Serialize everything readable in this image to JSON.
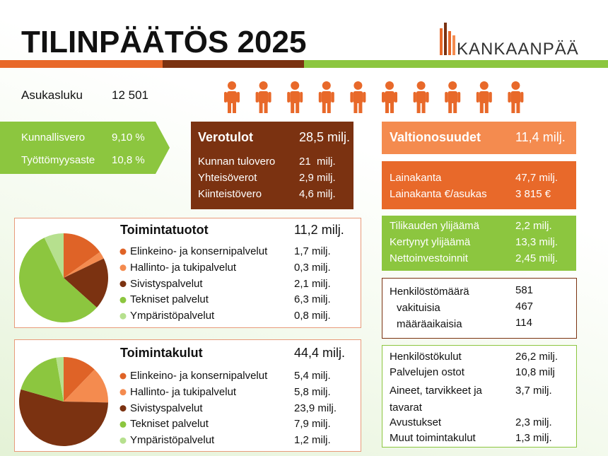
{
  "header": {
    "title": "TILINPÄÄTÖS 2025",
    "logo": "KANKAANPÄÄ"
  },
  "population": {
    "label": "Asukasluku",
    "value": "12 501"
  },
  "rates": [
    [
      "Kunnallisvero",
      "9,10 %"
    ],
    [
      "Työttömyysaste",
      "10,8 %"
    ]
  ],
  "tax_income": {
    "title": "Verotulot",
    "total": "28,5 milj.",
    "rows": [
      [
        "Kunnan tulovero",
        "21  milj."
      ],
      [
        "Yhteisöverot",
        "2,9 milj."
      ],
      [
        "Kiinteistövero",
        "4,6 milj."
      ]
    ]
  },
  "state_aid": {
    "label": "Valtionosuudet",
    "value": "11,4 milj."
  },
  "loans": [
    [
      "Lainakanta",
      "47,7 milj."
    ],
    [
      "Lainakanta €/asukas",
      "3 815 €"
    ]
  ],
  "surplus": [
    [
      "Tilikauden ylijäämä",
      "2,2 milj."
    ],
    [
      "Kertynyt ylijäämä",
      "13,3 milj."
    ],
    [
      "Nettoinvestoinnit",
      "2,45 milj."
    ]
  ],
  "staff": [
    [
      "Henkilöstömäärä",
      "581"
    ],
    [
      "vakituisia",
      "467"
    ],
    [
      "määräaikaisia",
      "114"
    ]
  ],
  "costs": [
    [
      "Henkilöstökulut",
      "26,2 milj."
    ],
    [
      "Palvelujen ostot",
      "10,8 milj"
    ],
    [
      "Aineet, tarvikkeet ja tavarat",
      "3,7 milj."
    ],
    [
      "Avustukset",
      "2,3 milj."
    ],
    [
      "Muut toimintakulut",
      "1,3 milj."
    ]
  ],
  "operating_income": {
    "title": "Toimintatuotot",
    "total": "11,2 milj.",
    "items": [
      {
        "label": "Elinkeino- ja konsernipalvelut",
        "value_label": "1,7 milj.",
        "value": 1.7,
        "color": "#df6327"
      },
      {
        "label": "Hallinto- ja tukipalvelut",
        "value_label": "0,3 milj.",
        "value": 0.3,
        "color": "#f48b4f"
      },
      {
        "label": "Sivistyspalvelut",
        "value_label": "2,1 milj.",
        "value": 2.1,
        "color": "#7b3211"
      },
      {
        "label": "Tekniset palvelut",
        "value_label": "6,3 milj.",
        "value": 6.3,
        "color": "#8cc63f"
      },
      {
        "label": "Ympäristöpalvelut",
        "value_label": "0,8 milj.",
        "value": 0.8,
        "color": "#b6e08e"
      }
    ]
  },
  "operating_costs": {
    "title": "Toimintakulut",
    "total": "44,4 milj.",
    "items": [
      {
        "label": "Elinkeino- ja konsernipalvelut",
        "value_label": "5,4 milj.",
        "value": 5.4,
        "color": "#df6327"
      },
      {
        "label": "Hallinto- ja tukipalvelut",
        "value_label": "5,8 milj.",
        "value": 5.8,
        "color": "#f48b4f"
      },
      {
        "label": "Sivistyspalvelut",
        "value_label": "23,9 milj.",
        "value": 23.9,
        "color": "#7b3211"
      },
      {
        "label": "Tekniset palvelut",
        "value_label": "7,9 milj.",
        "value": 7.9,
        "color": "#8cc63f"
      },
      {
        "label": "Ympäristöpalvelut",
        "value_label": "1,2 milj.",
        "value": 1.2,
        "color": "#b6e08e"
      }
    ]
  }
}
